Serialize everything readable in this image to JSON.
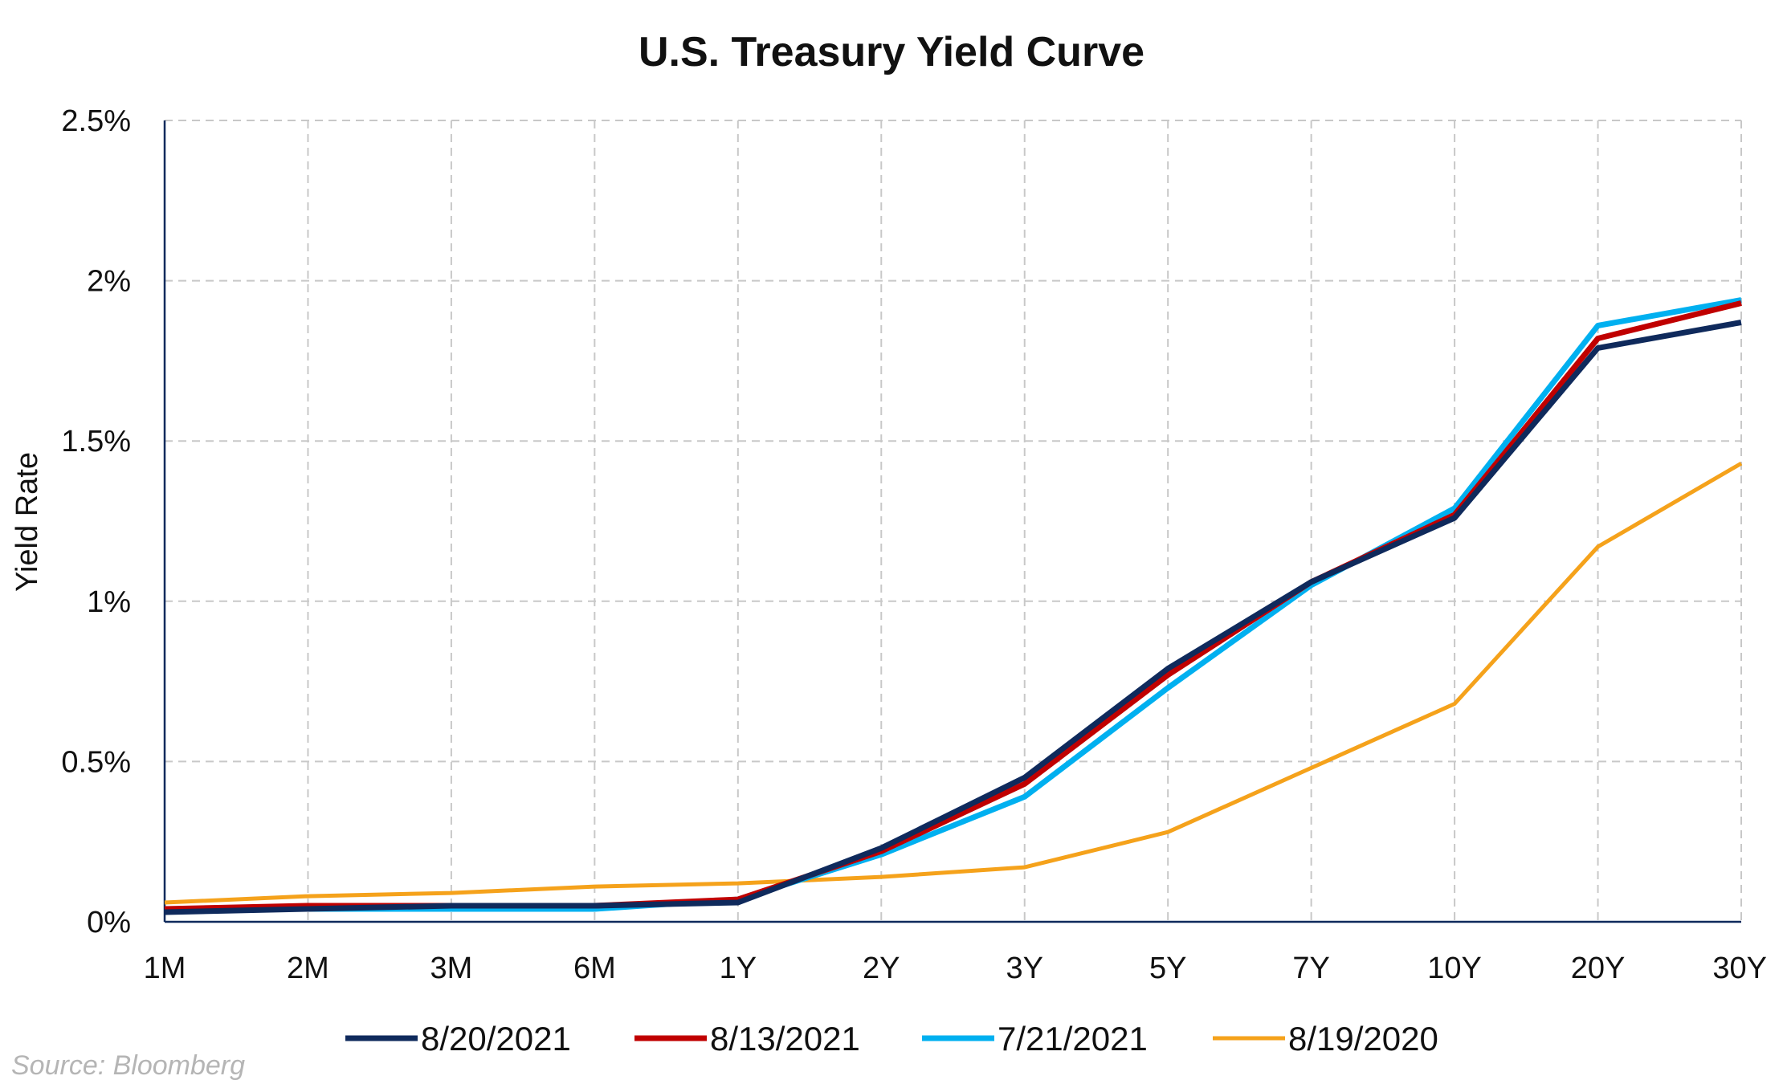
{
  "chart_data": {
    "type": "line",
    "title": "U.S. Treasury Yield Curve",
    "xlabel": "",
    "ylabel": "Yield Rate",
    "categories": [
      "1M",
      "2M",
      "3M",
      "6M",
      "1Y",
      "2Y",
      "3Y",
      "5Y",
      "7Y",
      "10Y",
      "20Y",
      "30Y"
    ],
    "yticks": [
      {
        "value": 0,
        "label": "0%"
      },
      {
        "value": 0.5,
        "label": "0.5%"
      },
      {
        "value": 1,
        "label": "1%"
      },
      {
        "value": 1.5,
        "label": "1.5%"
      },
      {
        "value": 2,
        "label": "2%"
      },
      {
        "value": 2.5,
        "label": "2.5%"
      }
    ],
    "ylim": [
      0,
      2.5
    ],
    "grid": true,
    "legend_position": "bottom",
    "series": [
      {
        "name": "8/20/2021",
        "color": "#0f2a5c",
        "values": [
          0.03,
          0.04,
          0.05,
          0.05,
          0.06,
          0.23,
          0.45,
          0.79,
          1.06,
          1.26,
          1.79,
          1.87
        ]
      },
      {
        "name": "8/13/2021",
        "color": "#c00000",
        "values": [
          0.04,
          0.05,
          0.05,
          0.05,
          0.07,
          0.22,
          0.43,
          0.77,
          1.06,
          1.27,
          1.82,
          1.93
        ]
      },
      {
        "name": "7/21/2021",
        "color": "#00b0f0",
        "values": [
          0.04,
          0.04,
          0.04,
          0.04,
          0.07,
          0.21,
          0.39,
          0.73,
          1.05,
          1.29,
          1.86,
          1.94
        ]
      },
      {
        "name": "8/19/2020",
        "color": "#f5a21b",
        "values": [
          0.06,
          0.08,
          0.09,
          0.11,
          0.12,
          0.14,
          0.17,
          0.28,
          0.48,
          0.68,
          1.17,
          1.43
        ]
      }
    ]
  },
  "source_note": "Source: Bloomberg"
}
